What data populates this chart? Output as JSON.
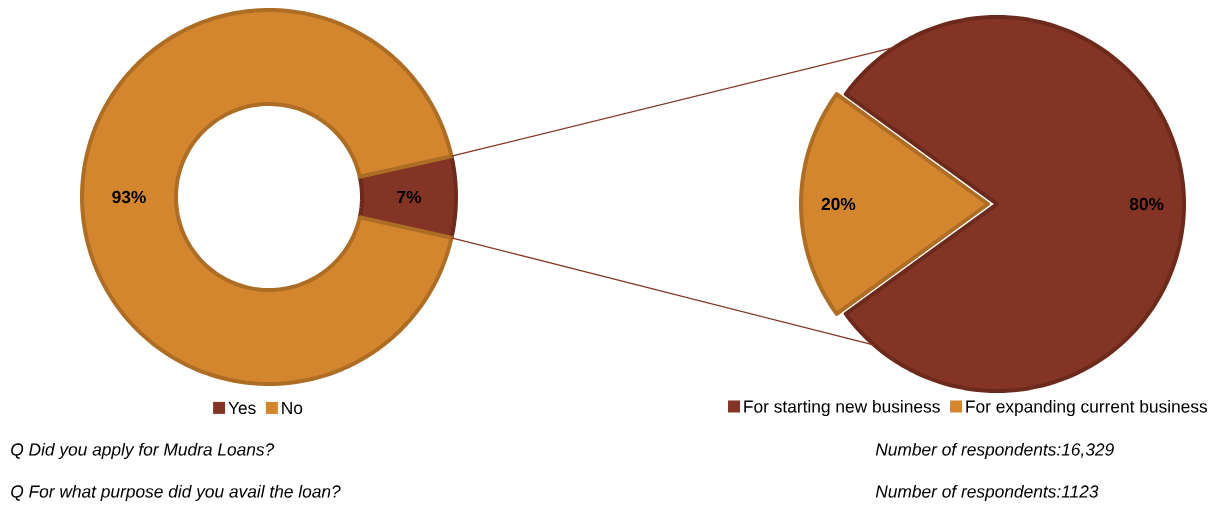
{
  "chart_data": [
    {
      "type": "donut",
      "categories": [
        "Yes",
        "No"
      ],
      "values": [
        7,
        93
      ],
      "colors": [
        "#843424",
        "#d4862e"
      ],
      "value_labels": [
        "7%",
        "93%"
      ],
      "legend": "bottom",
      "annotations": [
        "Q Did you apply for Mudra Loans?",
        "Number of respondents:16,329"
      ]
    },
    {
      "type": "pie",
      "categories": [
        "For starting new business",
        "For expanding current business"
      ],
      "values": [
        80,
        20
      ],
      "colors": [
        "#843424",
        "#d4862e"
      ],
      "value_labels": [
        "80%",
        "20%"
      ],
      "legend": "bottom",
      "annotations": [
        "Q For what purpose did you avail the loan?",
        "Number of respondents:1123"
      ]
    }
  ]
}
